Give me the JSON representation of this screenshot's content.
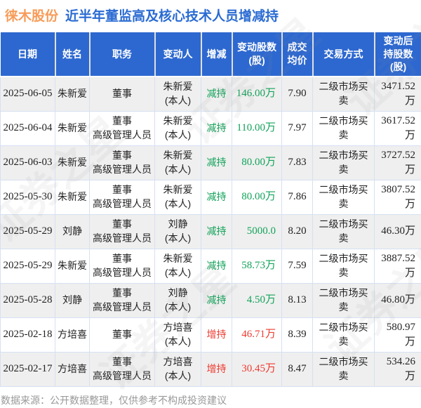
{
  "title": {
    "stock": "徕木股份",
    "text": "近半年董监高及核心技术人员增减持"
  },
  "colors": {
    "header_bg": "#2d68d0",
    "title_stock": "#f79b57",
    "title_main": "#2a6bd2",
    "decrease": "#12a35a",
    "increase": "#ee3a30",
    "row_alt": "#efefef",
    "border": "#d6e1f2",
    "footer_text": "#999999"
  },
  "watermark": {
    "text": "证券之星"
  },
  "footer": {
    "text": "数据来源：公开数据整理，仅供参考不构成投资建议"
  },
  "chart_data": {
    "type": "table",
    "title": "徕木股份 近半年董监高及核心技术人员增减持",
    "columns": [
      {
        "key": "date",
        "label": "日期"
      },
      {
        "key": "name",
        "label": "姓名"
      },
      {
        "key": "position",
        "label": "职务"
      },
      {
        "key": "changer",
        "label": "变动人"
      },
      {
        "key": "direction",
        "label": "增减"
      },
      {
        "key": "shares",
        "label": "变动股数\n(股)"
      },
      {
        "key": "avg_price",
        "label": "成交\n均价"
      },
      {
        "key": "method",
        "label": "交易方式"
      },
      {
        "key": "after",
        "label": "变动后\n持股数\n(股)"
      }
    ],
    "rows": [
      {
        "date": "2025-06-05",
        "name": "朱新爱",
        "position": "董事",
        "changer": "朱新爱\n(本人)",
        "direction": "减持",
        "shares": "146.00万",
        "avg_price": "7.90",
        "method": "二级市场买卖",
        "after": "3471.52万",
        "trend": "down"
      },
      {
        "date": "2025-06-04",
        "name": "朱新爱",
        "position": "董事\n高级管理人员",
        "changer": "朱新爱\n(本人)",
        "direction": "减持",
        "shares": "110.00万",
        "avg_price": "7.97",
        "method": "二级市场买卖",
        "after": "3617.52万",
        "trend": "down"
      },
      {
        "date": "2025-06-03",
        "name": "朱新爱",
        "position": "董事\n高级管理人员",
        "changer": "朱新爱\n(本人)",
        "direction": "减持",
        "shares": "80.00万",
        "avg_price": "7.83",
        "method": "二级市场买卖",
        "after": "3727.52万",
        "trend": "down"
      },
      {
        "date": "2025-05-30",
        "name": "朱新爱",
        "position": "董事\n高级管理人员",
        "changer": "朱新爱\n(本人)",
        "direction": "减持",
        "shares": "80.00万",
        "avg_price": "7.86",
        "method": "二级市场买卖",
        "after": "3807.52万",
        "trend": "down"
      },
      {
        "date": "2025-05-29",
        "name": "刘静",
        "position": "董事\n高级管理人员",
        "changer": "刘静\n(本人)",
        "direction": "减持",
        "shares": "5000.0",
        "avg_price": "8.20",
        "method": "二级市场买卖",
        "after": "46.30万",
        "trend": "down"
      },
      {
        "date": "2025-05-29",
        "name": "朱新爱",
        "position": "董事\n高级管理人员",
        "changer": "朱新爱\n(本人)",
        "direction": "减持",
        "shares": "58.73万",
        "avg_price": "7.59",
        "method": "二级市场买卖",
        "after": "3887.52万",
        "trend": "down"
      },
      {
        "date": "2025-05-28",
        "name": "刘静",
        "position": "董事\n高级管理人员",
        "changer": "刘静\n(本人)",
        "direction": "减持",
        "shares": "4.50万",
        "avg_price": "8.13",
        "method": "二级市场买卖",
        "after": "46.80万",
        "trend": "down"
      },
      {
        "date": "2025-02-18",
        "name": "方培喜",
        "position": "董事",
        "changer": "方培喜\n(本人)",
        "direction": "增持",
        "shares": "46.71万",
        "avg_price": "8.39",
        "method": "二级市场买卖",
        "after": "580.97万",
        "trend": "up"
      },
      {
        "date": "2025-02-17",
        "name": "方培喜",
        "position": "董事\n高级管理人员",
        "changer": "方培喜\n(本人)",
        "direction": "增持",
        "shares": "30.45万",
        "avg_price": "8.47",
        "method": "二级市场买卖",
        "after": "534.26万",
        "trend": "up"
      }
    ]
  }
}
